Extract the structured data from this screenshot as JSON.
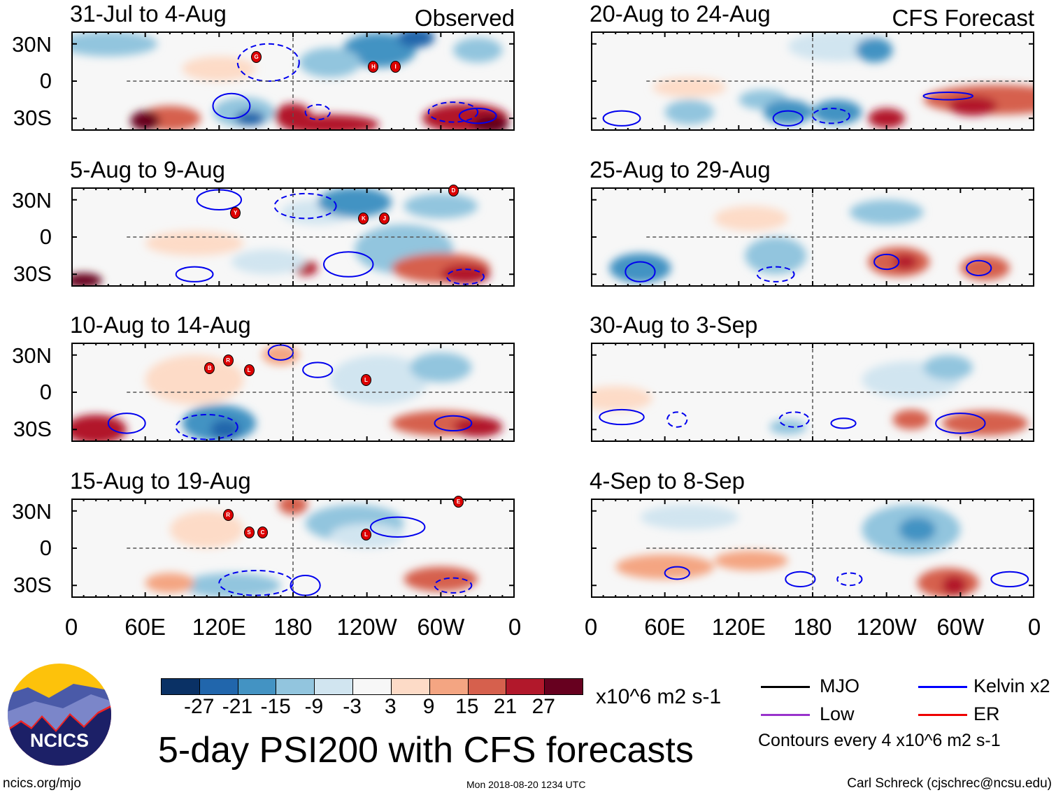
{
  "left_column": {
    "tag": "Observed",
    "panels": [
      {
        "title": "31-Jul to 4-Aug",
        "storms": [
          "G",
          "H",
          "I"
        ]
      },
      {
        "title": "5-Aug to 9-Aug",
        "storms": [
          "Y",
          "K",
          "J",
          "D"
        ]
      },
      {
        "title": "10-Aug to 14-Aug",
        "storms": [
          "B",
          "R",
          "L",
          "L"
        ]
      },
      {
        "title": "15-Aug to 19-Aug",
        "storms": [
          "R",
          "S",
          "C",
          "L",
          "E"
        ]
      }
    ]
  },
  "right_column": {
    "tag": "CFS Forecast",
    "panels": [
      {
        "title": "20-Aug to 24-Aug"
      },
      {
        "title": "25-Aug to 29-Aug"
      },
      {
        "title": "30-Aug to 3-Sep"
      },
      {
        "title": "4-Sep to 8-Sep"
      }
    ]
  },
  "lat_labels": [
    "30N",
    "0",
    "30S"
  ],
  "lon_labels": [
    "0",
    "60E",
    "120E",
    "180",
    "120W",
    "60W",
    "0"
  ],
  "colorbar": {
    "colors": [
      "#0a3165",
      "#2166ac",
      "#4393c3",
      "#92c5de",
      "#d1e5f0",
      "#f7f7f7",
      "#fddbc7",
      "#f4a582",
      "#d6604d",
      "#b2182b",
      "#67001f"
    ],
    "labels": [
      "-27",
      "-21",
      "-15",
      "-9",
      "-3",
      "3",
      "9",
      "15",
      "21",
      "27"
    ],
    "units": "x10^6 m2 s-1"
  },
  "title": "5-day PSI200 with CFS forecasts",
  "legend": {
    "items": [
      {
        "label": "MJO",
        "color": "#000000"
      },
      {
        "label": "Kelvin x2",
        "color": "#0000ff"
      },
      {
        "label": "Low",
        "color": "#9933cc"
      },
      {
        "label": "ER",
        "color": "#ee0000"
      }
    ],
    "note": "Contours every 4 x10^6 m2 s-1"
  },
  "logo_text": "NCICS",
  "footer": {
    "url": "ncics.org/mjo",
    "timestamp": "Mon 2018-08-20 1234 UTC",
    "credit": "Carl Schreck (cjschrec@ncsu.edu)"
  }
}
